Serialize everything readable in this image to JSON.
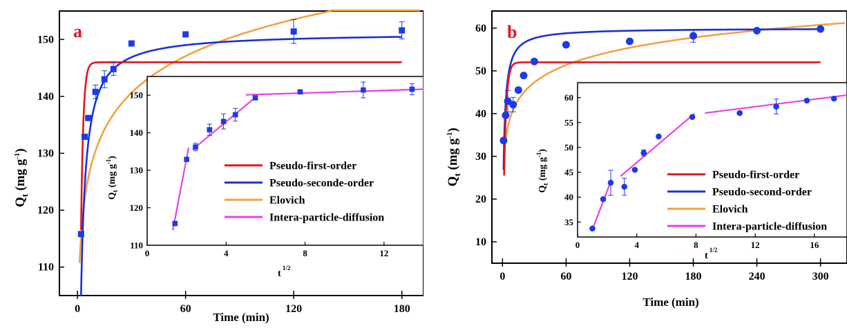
{
  "chart_data": [
    {
      "type": "scatter",
      "panel_label": "a",
      "xlabel": "Time (min)",
      "ylabel": "Q_t (mg g^-1)",
      "xlim": [
        -10,
        192
      ],
      "ylim": [
        105,
        155
      ],
      "xticks": [
        0,
        60,
        120,
        180
      ],
      "yticks": [
        110,
        120,
        130,
        140,
        150
      ],
      "colors": {
        "pfo": "#e5141c",
        "pso": "#1b2fd6",
        "elovich": "#f5a040",
        "ipd": "#e83fe8",
        "points": "#1b3be6"
      },
      "series": [
        {
          "name": "Experimental",
          "kind": "points",
          "x": [
            2,
            4,
            6,
            10,
            15,
            20,
            30,
            60,
            120,
            180
          ],
          "y": [
            115.8,
            132.9,
            136.2,
            140.8,
            143.0,
            144.8,
            149.3,
            150.9,
            151.4,
            151.6
          ],
          "err": [
            0,
            0,
            0,
            1.2,
            1.5,
            1.1,
            0,
            0,
            2.1,
            1.5
          ]
        },
        {
          "name": "Pseudo-first-order",
          "kind": "line",
          "qe": 146.0,
          "k1": 0.8
        },
        {
          "name": "Pseudo-seconde-order",
          "kind": "line",
          "qe": 151.2,
          "k2": 0.0075
        },
        {
          "name": "Elovich",
          "kind": "line",
          "a": 109,
          "b": 9.3
        }
      ],
      "legend": [
        "Pseudo-first-order",
        "Pseudo-seconde-order",
        "Elovich",
        "Intera-particle-diffusion"
      ],
      "inset": {
        "xlabel": "t^1/2",
        "ylabel": "Q_t (mg g^-1)",
        "xlim": [
          0,
          14
        ],
        "ylim": [
          110,
          155
        ],
        "xticks": [
          0,
          4,
          8,
          12
        ],
        "yticks": [
          110,
          120,
          130,
          140,
          150
        ],
        "points": {
          "x": [
            1.41,
            2.0,
            2.45,
            3.16,
            3.87,
            4.47,
            5.48,
            7.75,
            10.95,
            13.42
          ],
          "y": [
            115.8,
            132.9,
            136.2,
            140.8,
            143.0,
            144.8,
            149.3,
            150.9,
            151.4,
            151.6
          ],
          "err": [
            0,
            0,
            1.0,
            1.5,
            2.0,
            1.7,
            0,
            0,
            2.1,
            1.5
          ]
        },
        "segments": [
          {
            "x": [
              1.3,
              2.1
            ],
            "y": [
              114,
              136
            ]
          },
          {
            "x": [
              2.3,
              5.5
            ],
            "y": [
              135.5,
              149.5
            ]
          },
          {
            "x": [
              5.0,
              14.0
            ],
            "y": [
              150.1,
              151.6
            ]
          }
        ]
      }
    },
    {
      "type": "scatter",
      "panel_label": "b",
      "xlabel": "Time (min)",
      "ylabel": "Q_t (mg g^-1)",
      "xlim": [
        -10,
        325
      ],
      "ylim": [
        5,
        64
      ],
      "xticks": [
        0,
        60,
        120,
        180,
        240,
        300
      ],
      "yticks": [
        10,
        20,
        30,
        40,
        50,
        60
      ],
      "colors": {
        "pfo": "#e5141c",
        "pso": "#1b2fd6",
        "elovich": "#f5a040",
        "ipd": "#e83fe8",
        "points": "#1b3be6"
      },
      "series": [
        {
          "name": "Experimental",
          "kind": "points",
          "x": [
            1,
            3,
            5,
            10,
            15,
            20,
            30,
            60,
            120,
            180,
            240,
            300
          ],
          "y": [
            33.7,
            39.6,
            42.9,
            42.1,
            45.5,
            48.9,
            52.2,
            56.1,
            56.9,
            58.2,
            59.4,
            59.8
          ],
          "err": [
            0,
            0,
            2.5,
            1.7,
            0,
            0,
            0,
            0,
            0,
            1.5,
            0,
            0
          ]
        },
        {
          "name": "Pseudo-first-order",
          "kind": "line",
          "qe": 52.0,
          "k1": 0.45
        },
        {
          "name": "Pseudo-second-order",
          "kind": "line",
          "qe": 60.0,
          "k2": 0.0135
        },
        {
          "name": "Elovich",
          "kind": "line",
          "a": 27.4,
          "b": 5.85
        }
      ],
      "legend": [
        "Pseudo-first-order",
        "Pseudo-second-order",
        "Elovich",
        "Intera-particle-diffusion"
      ],
      "inset": {
        "xlabel": "t^1/2",
        "ylabel": "Q_t (mg g^-1)",
        "xlim": [
          0,
          18.2
        ],
        "ylim": [
          32,
          63
        ],
        "xticks": [
          0,
          4,
          8,
          12,
          16
        ],
        "yticks": [
          35,
          40,
          45,
          50,
          55,
          60
        ],
        "points": {
          "x": [
            1.0,
            1.73,
            2.24,
            3.16,
            3.87,
            4.47,
            5.48,
            7.75,
            10.95,
            13.42,
            15.49,
            17.32
          ],
          "y": [
            33.7,
            39.6,
            42.9,
            42.1,
            45.5,
            48.9,
            52.2,
            56.1,
            56.9,
            58.2,
            59.4,
            59.8
          ],
          "err": [
            0,
            0,
            2.5,
            1.7,
            0,
            0.6,
            0,
            0,
            0,
            1.5,
            0,
            0
          ]
        },
        "segments": [
          {
            "x": [
              1.0,
              2.3
            ],
            "y": [
              33.5,
              43.6
            ]
          },
          {
            "x": [
              2.9,
              7.9
            ],
            "y": [
              44.2,
              56.8
            ]
          },
          {
            "x": [
              8.6,
              18.2
            ],
            "y": [
              56.9,
              60.5
            ]
          }
        ]
      }
    }
  ]
}
